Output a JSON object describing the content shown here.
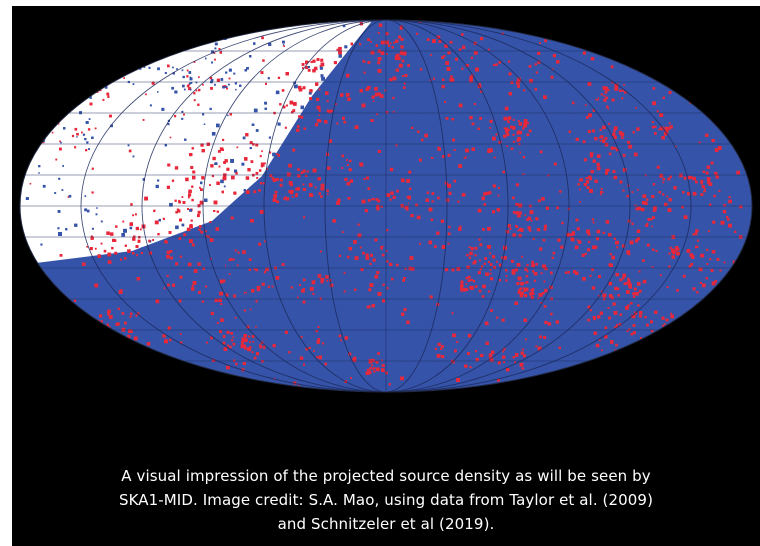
{
  "colors": {
    "background": "#000000",
    "caption_text": "#ffffff",
    "density_red": "#e8283a",
    "density_blue": "#3553a8",
    "sparse_region": "#ffffff",
    "grid_lines": "#1c2a5c"
  },
  "figure": {
    "projection": "all-sky ellipse (Mollweide-style)",
    "grid": true
  },
  "caption": {
    "line1": "A visual impression of the  projected source density as will be seen by",
    "line2": "SKA1-MID. Image credit: S.A. Mao, using data from Taylor et al. (2009)",
    "line3": "and Schnitzeler et al (2019)."
  }
}
